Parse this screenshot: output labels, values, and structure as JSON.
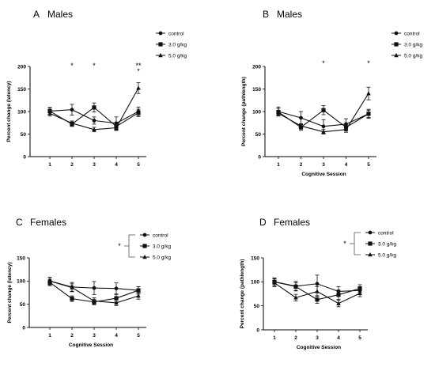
{
  "chart_data": [
    {
      "type": "line",
      "panel": "A",
      "title": "Males",
      "xlabel": "",
      "ylabel": "Percent change (latency)",
      "x": [
        1,
        2,
        3,
        4,
        5
      ],
      "ylim": [
        0,
        200
      ],
      "yticks": [
        0,
        50,
        100,
        150,
        200
      ],
      "series": [
        {
          "name": "control",
          "values": [
            101,
            104,
            80,
            74,
            100
          ],
          "err": [
            8,
            12,
            8,
            14,
            10
          ],
          "marker": "circle"
        },
        {
          "name": "3.0 g/kg",
          "values": [
            101,
            72,
            109,
            67,
            97
          ],
          "err": [
            7,
            5,
            10,
            8,
            8
          ],
          "marker": "square"
        },
        {
          "name": "5.0 g/kg",
          "values": [
            96,
            74,
            60,
            64,
            152
          ],
          "err": [
            6,
            5,
            5,
            6,
            12
          ],
          "marker": "triangle"
        }
      ],
      "annotations": [
        {
          "x": 2,
          "text": "*"
        },
        {
          "x": 3,
          "text": "*"
        },
        {
          "x": 5,
          "text": "**"
        },
        {
          "x": 5,
          "text": "*"
        }
      ],
      "legend": "top-right"
    },
    {
      "type": "line",
      "panel": "B",
      "title": "Males",
      "xlabel": "Cognitive Session",
      "ylabel": "Percent change (pathlength)",
      "x": [
        1,
        2,
        3,
        4,
        5
      ],
      "ylim": [
        0,
        200
      ],
      "yticks": [
        0,
        50,
        100,
        150,
        200
      ],
      "series": [
        {
          "name": "control",
          "values": [
            100,
            86,
            67,
            72,
            95
          ],
          "err": [
            10,
            14,
            15,
            12,
            10
          ],
          "marker": "circle"
        },
        {
          "name": "3.0 g/kg",
          "values": [
            99,
            65,
            103,
            65,
            95
          ],
          "err": [
            8,
            6,
            10,
            8,
            8
          ],
          "marker": "square"
        },
        {
          "name": "5.0 g/kg",
          "values": [
            96,
            68,
            55,
            60,
            140
          ],
          "err": [
            6,
            5,
            5,
            6,
            14
          ],
          "marker": "triangle"
        }
      ],
      "annotations": [
        {
          "x": 3,
          "text": "*"
        },
        {
          "x": 5,
          "text": "*"
        }
      ],
      "legend": "top-right"
    },
    {
      "type": "line",
      "panel": "C",
      "title": "Females",
      "xlabel": "Cognitive Session",
      "ylabel": "Percent change (latency)",
      "x": [
        1,
        2,
        3,
        4,
        5
      ],
      "ylim": [
        0,
        150
      ],
      "yticks": [
        0,
        50,
        100,
        150
      ],
      "series": [
        {
          "name": "control",
          "values": [
            100,
            87,
            85,
            84,
            80
          ],
          "err": [
            8,
            10,
            14,
            12,
            8
          ],
          "marker": "circle"
        },
        {
          "name": "3.0 g/kg",
          "values": [
            97,
            62,
            55,
            63,
            80
          ],
          "err": [
            7,
            6,
            6,
            8,
            8
          ],
          "marker": "square"
        },
        {
          "name": "5.0 g/kg",
          "values": [
            100,
            86,
            57,
            53,
            68
          ],
          "err": [
            8,
            8,
            7,
            6,
            7
          ],
          "marker": "triangle"
        }
      ],
      "bracket_label": "*",
      "legend": "top-right"
    },
    {
      "type": "line",
      "panel": "D",
      "title": "Females",
      "xlabel": "Cognitive Session",
      "ylabel": "Percent change (pathlength)",
      "x": [
        1,
        2,
        3,
        4,
        5
      ],
      "ylim": [
        0,
        150
      ],
      "yticks": [
        0,
        50,
        100,
        150
      ],
      "series": [
        {
          "name": "control",
          "values": [
            100,
            91,
            96,
            80,
            82
          ],
          "err": [
            8,
            10,
            18,
            10,
            8
          ],
          "marker": "circle"
        },
        {
          "name": "3.0 g/kg",
          "values": [
            100,
            90,
            63,
            73,
            86
          ],
          "err": [
            8,
            8,
            8,
            10,
            8
          ],
          "marker": "square"
        },
        {
          "name": "5.0 g/kg",
          "values": [
            98,
            67,
            80,
            55,
            76
          ],
          "err": [
            8,
            7,
            10,
            7,
            7
          ],
          "marker": "triangle"
        }
      ],
      "bracket_label": "*",
      "legend": "top-right"
    }
  ]
}
